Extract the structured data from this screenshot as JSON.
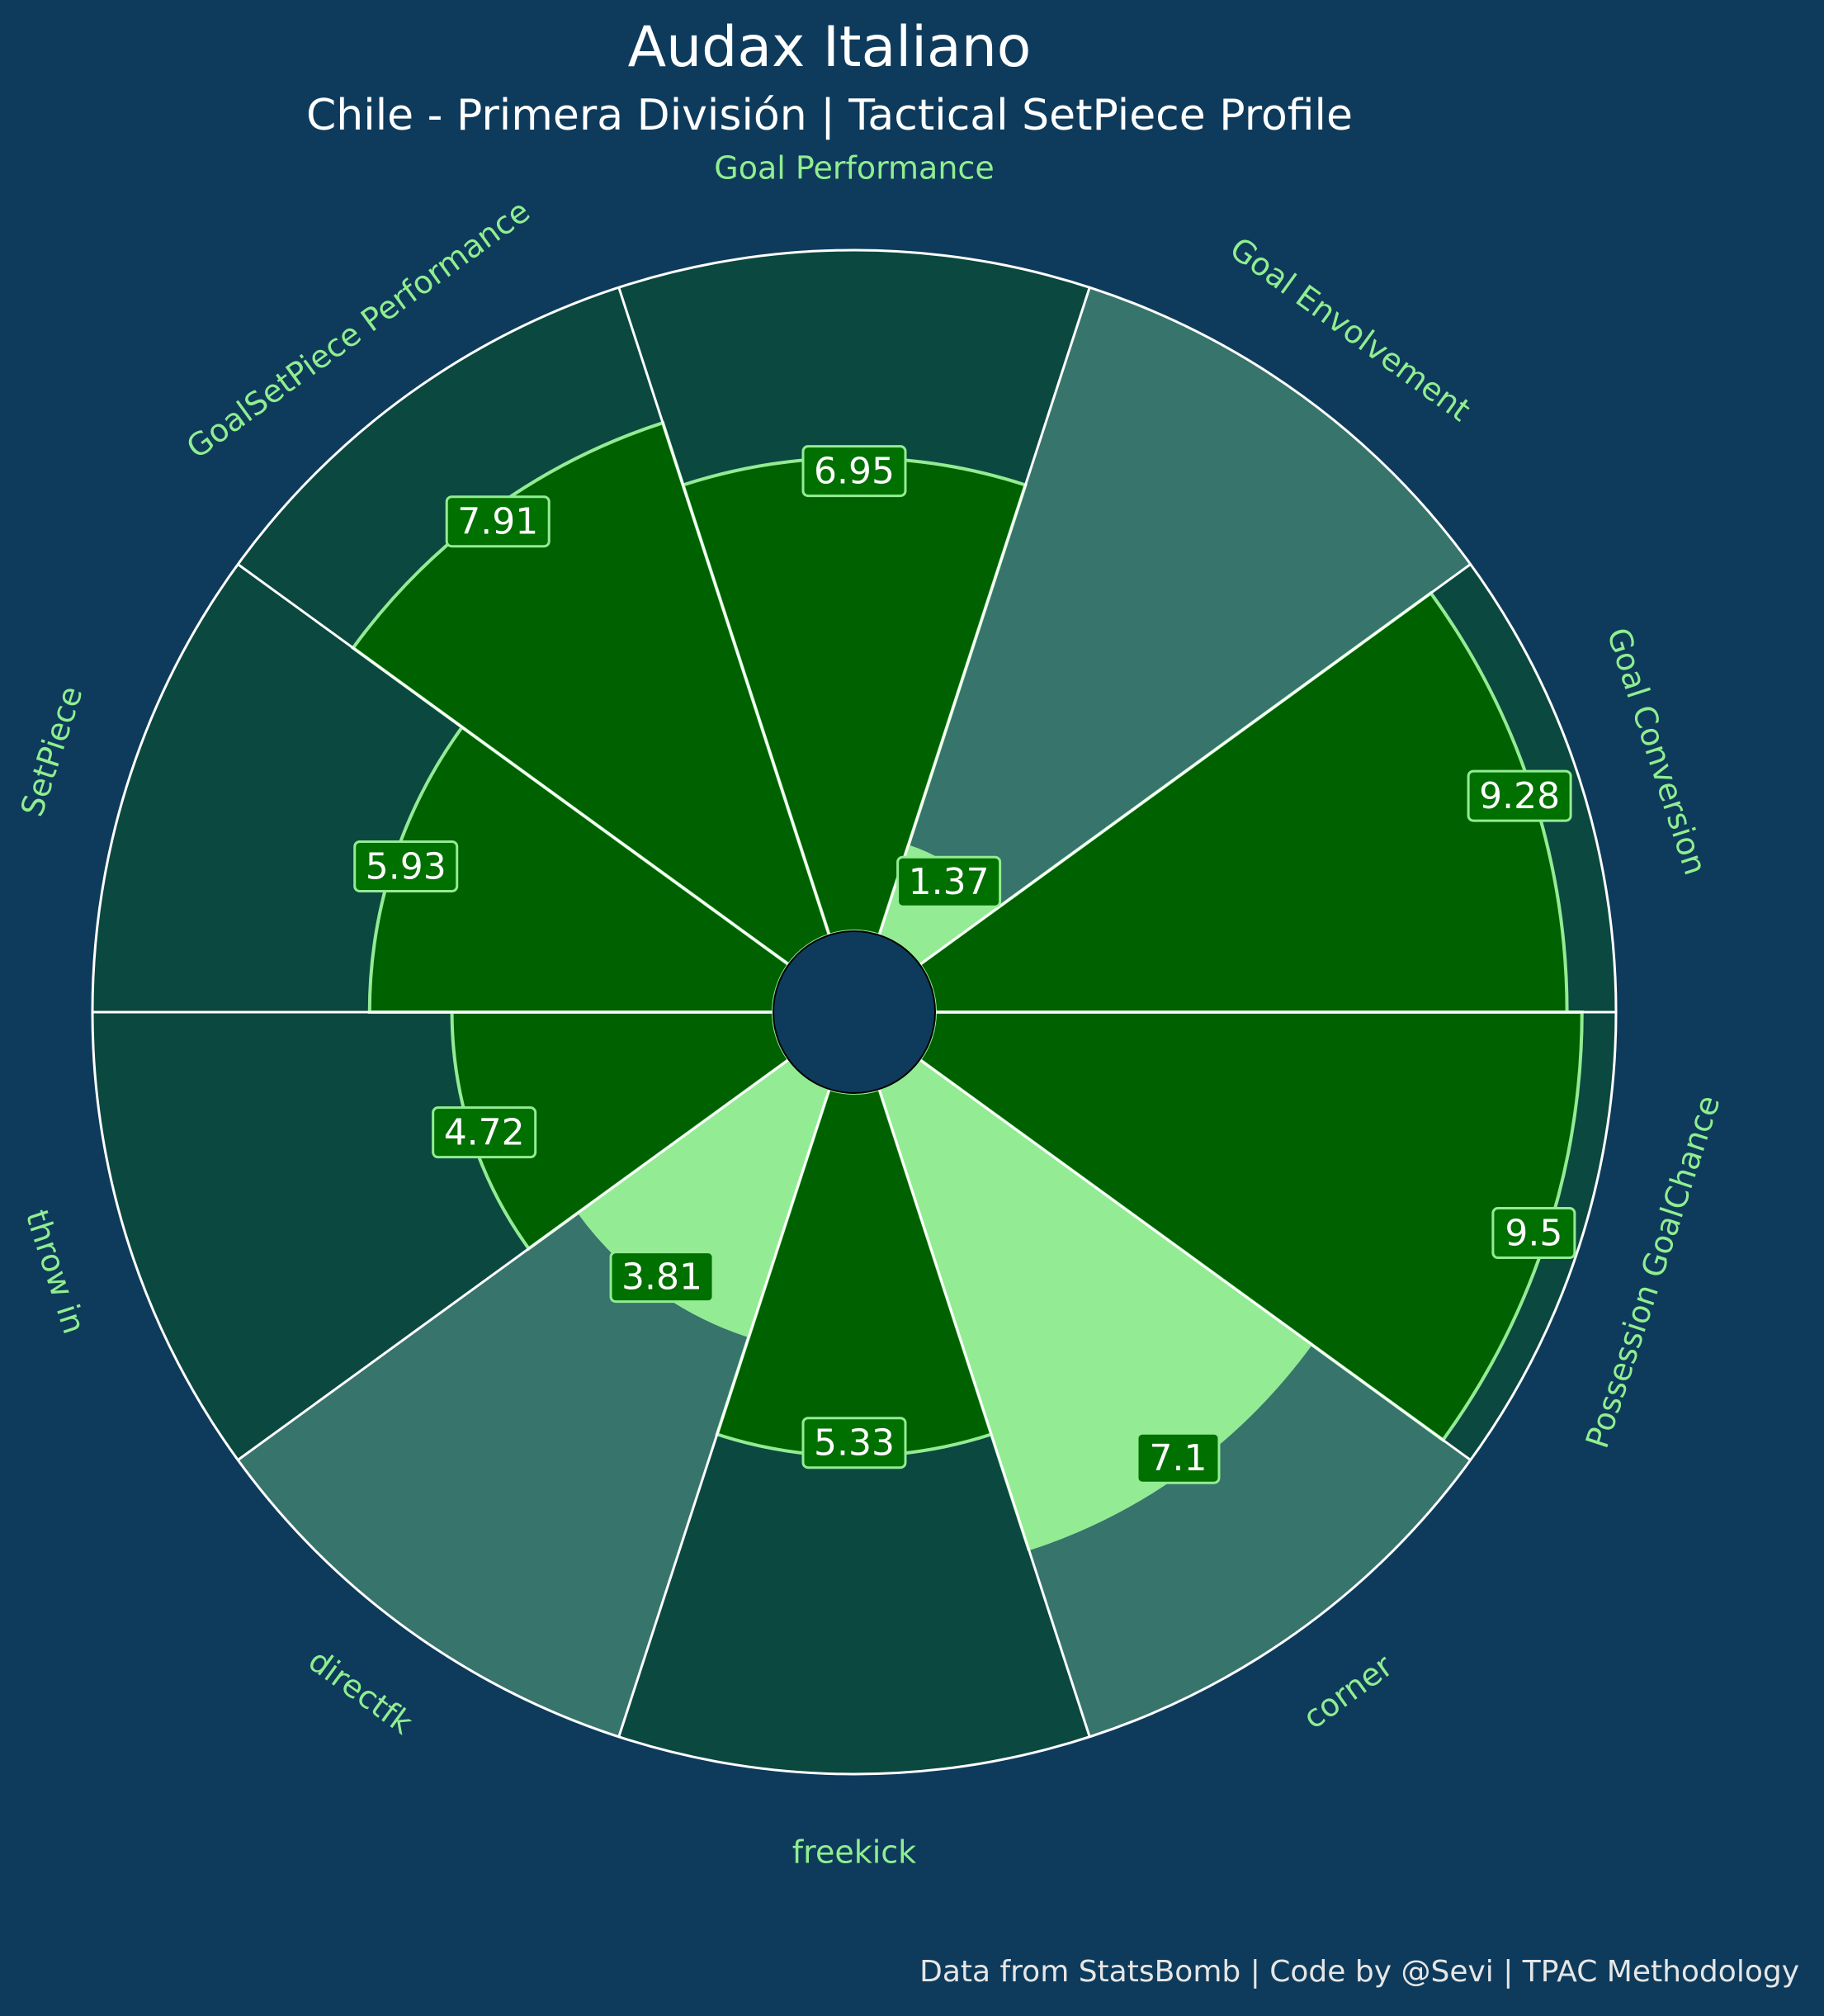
{
  "header": {
    "title": "Audax Italiano",
    "subtitle": "Chile - Primera División | Tactical SetPiece Profile"
  },
  "footer": {
    "credit": "Data from StatsBomb | Code by @Sevi | TPAC Methodology"
  },
  "colors": {
    "background": "#0e3b5c",
    "slice_background_dark": "#0b4840",
    "slice_background_teal": "#37746c",
    "value_dark_green": "#006100",
    "value_light_green": "#93ec93",
    "label_green": "#90ee90",
    "separator": "#ffffff",
    "label_box_fill": "#007000"
  },
  "chart_data": {
    "type": "radial_bar",
    "title": "Audax Italiano",
    "subtitle": "Chile - Primera División | Tactical SetPiece Profile",
    "range": [
      0,
      10
    ],
    "categories": [
      "Goal Performance",
      "Goal Envolvement",
      "Goal Conversion",
      "Possession GoalChance",
      "corner",
      "freekick",
      "directfk",
      "throw in",
      "SetPiece",
      "GoalSetPiece Performance"
    ],
    "values": [
      6.95,
      1.37,
      9.28,
      9.5,
      7.1,
      5.33,
      3.81,
      4.72,
      5.93,
      7.91
    ],
    "value_labels": [
      "6.95",
      "1.37",
      "9.28",
      "9.5",
      "7.1",
      "5.33",
      "3.81",
      "4.72",
      "5.93",
      "7.91"
    ],
    "fill_style": [
      "dark",
      "light",
      "dark",
      "dark",
      "light",
      "dark",
      "light",
      "dark",
      "dark",
      "dark"
    ],
    "background_style": [
      "dark",
      "teal",
      "dark",
      "dark",
      "teal",
      "dark",
      "teal",
      "dark",
      "dark",
      "dark"
    ]
  }
}
